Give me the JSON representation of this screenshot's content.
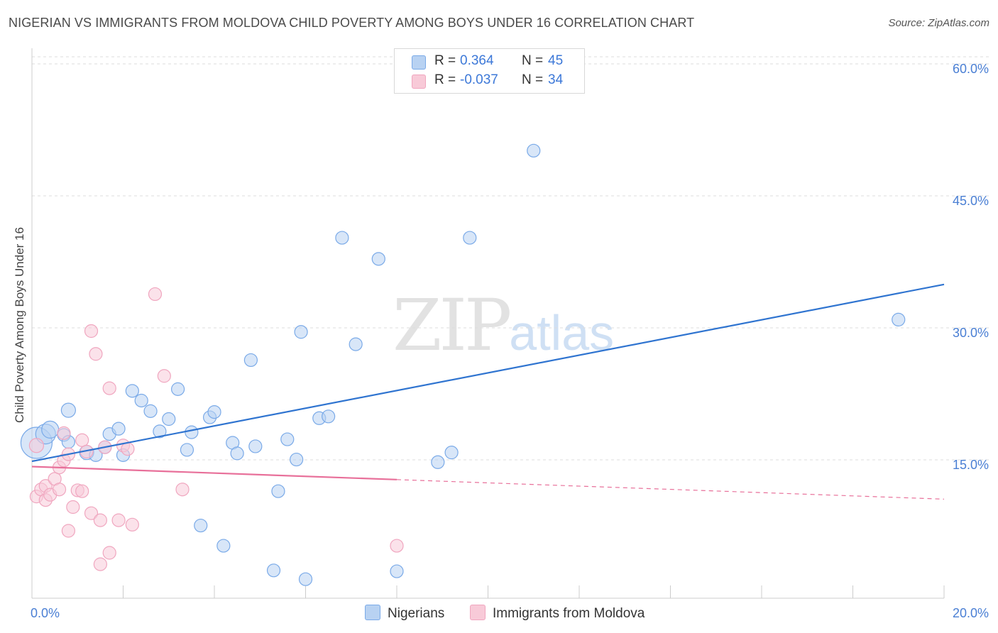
{
  "chart_data": {
    "type": "scatter",
    "title": "NIGERIAN VS IMMIGRANTS FROM MOLDOVA CHILD POVERTY AMONG BOYS UNDER 16 CORRELATION CHART",
    "source": "Source: ZipAtlas.com",
    "xlabel": "",
    "ylabel": "Child Poverty Among Boys Under 16",
    "xlim": [
      0,
      20
    ],
    "ylim": [
      0,
      63
    ],
    "x_tick_labels": [
      "0.0%",
      "20.0%"
    ],
    "y_ticks": [
      15,
      30,
      45,
      60
    ],
    "y_tick_labels": [
      "15.0%",
      "30.0%",
      "45.0%",
      "60.0%"
    ],
    "watermark": {
      "zip": "ZIP",
      "atlas": "atlas"
    },
    "legend": {
      "rows": [
        {
          "r_label": "R =",
          "r_value": "0.364",
          "n_label": "N =",
          "n_value": "45"
        },
        {
          "r_label": "R =",
          "r_value": "-0.037",
          "n_label": "N =",
          "n_value": "34"
        }
      ]
    },
    "series": [
      {
        "name": "Nigerians",
        "color": "#7aaae8",
        "fill": "#b8d2f2",
        "trend": {
          "x0": 0,
          "y0": 15.4,
          "x1": 20,
          "y1": 35.5,
          "solid_until": 20
        },
        "points": [
          [
            0.1,
            17.5,
            22
          ],
          [
            0.3,
            18.5,
            14
          ],
          [
            0.4,
            19.0,
            12
          ],
          [
            0.8,
            21.2,
            10
          ],
          [
            0.7,
            18.4,
            9
          ],
          [
            0.8,
            17.6,
            9
          ],
          [
            1.2,
            16.4,
            10
          ],
          [
            1.4,
            16.1,
            9
          ],
          [
            1.6,
            17.0,
            9
          ],
          [
            1.7,
            18.5,
            9
          ],
          [
            1.9,
            19.1,
            9
          ],
          [
            2.0,
            16.1,
            9
          ],
          [
            2.2,
            23.4,
            9
          ],
          [
            2.4,
            22.3,
            9
          ],
          [
            2.6,
            21.1,
            9
          ],
          [
            2.8,
            18.8,
            9
          ],
          [
            3.0,
            20.2,
            9
          ],
          [
            3.2,
            23.6,
            9
          ],
          [
            3.4,
            16.7,
            9
          ],
          [
            3.5,
            18.7,
            9
          ],
          [
            3.7,
            8.1,
            9
          ],
          [
            3.9,
            20.4,
            9
          ],
          [
            4.0,
            21.0,
            9
          ],
          [
            4.2,
            5.8,
            9
          ],
          [
            4.4,
            17.5,
            9
          ],
          [
            4.5,
            16.3,
            9
          ],
          [
            4.8,
            26.9,
            9
          ],
          [
            4.9,
            17.1,
            9
          ],
          [
            5.3,
            3.0,
            9
          ],
          [
            5.4,
            12.0,
            9
          ],
          [
            5.6,
            17.9,
            9
          ],
          [
            5.8,
            15.6,
            9
          ],
          [
            5.9,
            30.1,
            9
          ],
          [
            6.0,
            2.0,
            9
          ],
          [
            6.3,
            20.3,
            9
          ],
          [
            6.5,
            20.5,
            9
          ],
          [
            6.8,
            40.8,
            9
          ],
          [
            7.1,
            28.7,
            9
          ],
          [
            7.6,
            38.4,
            9
          ],
          [
            8.0,
            2.9,
            9
          ],
          [
            8.9,
            15.3,
            9
          ],
          [
            9.2,
            16.4,
            9
          ],
          [
            9.6,
            40.8,
            9
          ],
          [
            11.0,
            50.7,
            9
          ],
          [
            19.0,
            31.5,
            9
          ]
        ]
      },
      {
        "name": "Immigrants from Moldova",
        "color": "#f0a6bf",
        "fill": "#f8cad8",
        "trend": {
          "x0": 0,
          "y0": 14.8,
          "x1": 20,
          "y1": 11.1,
          "solid_until": 8
        },
        "points": [
          [
            0.1,
            17.2,
            10
          ],
          [
            0.1,
            11.4,
            9
          ],
          [
            0.2,
            12.2,
            9
          ],
          [
            0.3,
            12.6,
            9
          ],
          [
            0.3,
            11.0,
            9
          ],
          [
            0.4,
            11.6,
            9
          ],
          [
            0.5,
            13.4,
            9
          ],
          [
            0.6,
            14.7,
            9
          ],
          [
            0.6,
            12.2,
            9
          ],
          [
            0.7,
            15.5,
            9
          ],
          [
            0.7,
            18.6,
            9
          ],
          [
            0.8,
            16.2,
            9
          ],
          [
            0.8,
            7.5,
            9
          ],
          [
            0.9,
            10.2,
            9
          ],
          [
            1.0,
            12.1,
            9
          ],
          [
            1.1,
            12.0,
            9
          ],
          [
            1.1,
            17.8,
            9
          ],
          [
            1.2,
            16.5,
            9
          ],
          [
            1.3,
            30.2,
            9
          ],
          [
            1.3,
            9.5,
            9
          ],
          [
            1.4,
            27.6,
            9
          ],
          [
            1.5,
            3.7,
            9
          ],
          [
            1.5,
            8.7,
            9
          ],
          [
            1.6,
            17.0,
            9
          ],
          [
            1.7,
            23.7,
            9
          ],
          [
            1.7,
            5.0,
            9
          ],
          [
            1.9,
            8.7,
            9
          ],
          [
            2.0,
            17.2,
            9
          ],
          [
            2.1,
            16.8,
            9
          ],
          [
            2.2,
            8.2,
            9
          ],
          [
            2.7,
            34.4,
            9
          ],
          [
            2.9,
            25.1,
            9
          ],
          [
            3.3,
            12.2,
            9
          ],
          [
            8.0,
            5.8,
            9
          ]
        ]
      }
    ]
  },
  "colors": {
    "grid": "#dcdcdc",
    "axis": "#cccccc",
    "blue_trend": "#2f74d0",
    "pink_trend": "#e8709a",
    "tick_text": "#4a7fd4"
  }
}
